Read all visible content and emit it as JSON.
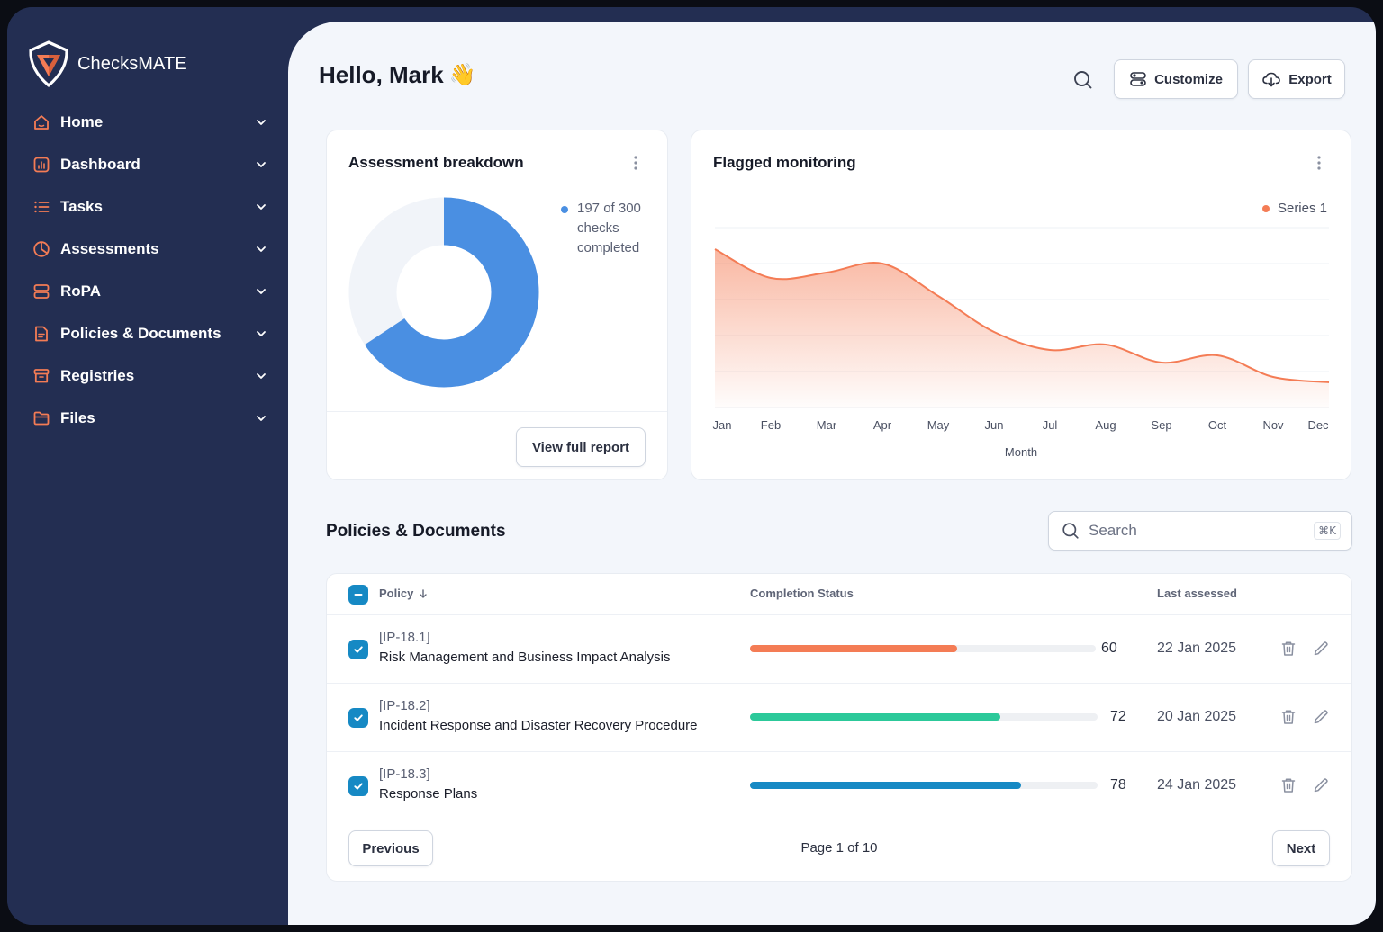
{
  "brand": {
    "name": "CheckMATE",
    "name_display": "ChecksMATE",
    "accent": "#f47c55"
  },
  "sidebar": {
    "items": [
      {
        "label": "Home",
        "icon": "home-icon"
      },
      {
        "label": "Dashboard",
        "icon": "chart-square-icon"
      },
      {
        "label": "Tasks",
        "icon": "list-icon"
      },
      {
        "label": "Assessments",
        "icon": "pie-chart-icon"
      },
      {
        "label": "RoPA",
        "icon": "server-icon"
      },
      {
        "label": "Policies & Documents",
        "icon": "document-icon"
      },
      {
        "label": "Registries",
        "icon": "archive-icon"
      },
      {
        "label": "Files",
        "icon": "folder-icon"
      }
    ]
  },
  "header": {
    "greeting": "Hello, Mark",
    "wave": "👋",
    "customize_label": "Customize",
    "export_label": "Export"
  },
  "assessment": {
    "title": "Assessment breakdown",
    "legend": "197 of 300 checks completed",
    "completed": 197,
    "total": 300,
    "color": "#4a8fe2",
    "button_label": "View full report"
  },
  "flagged": {
    "title": "Flagged monitoring",
    "legend": "Series 1",
    "xlabel": "Month"
  },
  "chart_data": {
    "type": "area",
    "title": "Flagged monitoring",
    "categories": [
      "Jan",
      "Feb",
      "Mar",
      "Apr",
      "May",
      "Jun",
      "Jul",
      "Aug",
      "Sep",
      "Oct",
      "Nov",
      "Dec"
    ],
    "series": [
      {
        "name": "Series 1",
        "values": [
          88,
          72,
          75,
          80,
          62,
          42,
          32,
          35,
          25,
          29,
          17,
          14
        ],
        "color": "#f47c55"
      }
    ],
    "xlabel": "Month",
    "ylabel": "",
    "ylim": [
      0,
      100
    ],
    "grid": true,
    "legend": "top-right"
  },
  "policies": {
    "title": "Policies & Documents",
    "search_placeholder": "Search",
    "search_shortcut": "⌘K",
    "columns": {
      "policy": "Policy",
      "status": "Completion Status",
      "last": "Last assessed"
    },
    "rows": [
      {
        "code": "[IP-18.1]",
        "name": "Risk Management and Business Impact Analysis",
        "pct": 60,
        "pct_label": "60",
        "color": "#f47c55",
        "date": "22 Jan 2025"
      },
      {
        "code": "[IP-18.2]",
        "name": "Incident Response and Disaster Recovery Procedure",
        "pct": 72,
        "pct_label": "72",
        "color": "#2cc99a",
        "date": "20 Jan 2025"
      },
      {
        "code": "[IP-18.3]",
        "name": "Response Plans",
        "pct": 78,
        "pct_label": "78",
        "color": "#1689c4",
        "date": "24 Jan 2025"
      }
    ],
    "pager": {
      "prev": "Previous",
      "next": "Next",
      "info": "Page 1 of 10"
    }
  }
}
